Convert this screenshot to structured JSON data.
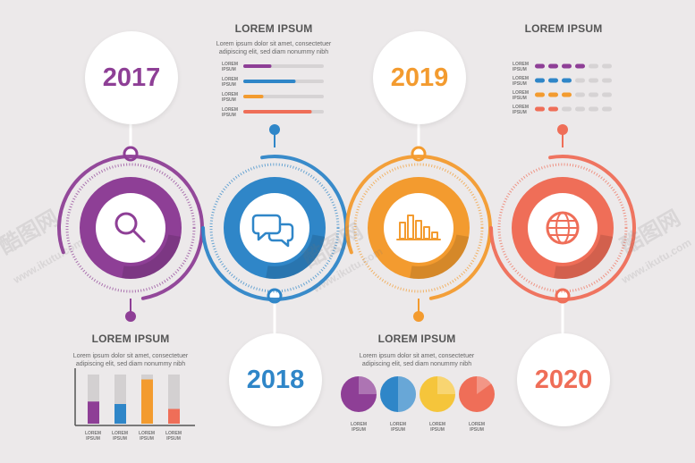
{
  "timeline": [
    {
      "year": "2017",
      "color": "#8e3f96",
      "icon": "search-icon"
    },
    {
      "year": "2018",
      "color": "#2f86c8",
      "icon": "chat-bubbles-icon"
    },
    {
      "year": "2019",
      "color": "#f39b2f",
      "icon": "bar-chart-icon"
    },
    {
      "year": "2020",
      "color": "#ef6e58",
      "icon": "globe-icon"
    }
  ],
  "blocks": {
    "top_left": {
      "title": "LOREM IPSUM",
      "text": [
        "Lorem ipsum dolor sit amet, consectetuer",
        "adipiscing elit, sed diam nonummy nibh"
      ]
    },
    "top_right": {
      "title": "LOREM IPSUM"
    },
    "bottom_left": {
      "title": "LOREM IPSUM",
      "text": [
        "Lorem ipsum dolor sit amet, consectetuer",
        "adipiscing elit, sed diam nonummy nibh"
      ]
    },
    "bottom_right": {
      "title": "LOREM IPSUM",
      "text": [
        "Lorem ipsum dolor sit amet, consectetuer",
        "adipiscing elit, sed diam nonummy nibh"
      ]
    }
  },
  "progress_bars": {
    "label": [
      "LOREM",
      "IPSUM"
    ],
    "items": [
      {
        "color": "#8e3f96",
        "value": 0.35
      },
      {
        "color": "#2f86c8",
        "value": 0.65
      },
      {
        "color": "#f39b2f",
        "value": 0.25
      },
      {
        "color": "#ef6e58",
        "value": 0.85
      }
    ]
  },
  "dot_ratings": {
    "label": [
      "LOREM",
      "IPSUM"
    ],
    "total": 6,
    "items": [
      {
        "color": "#8e3f96",
        "filled": 4
      },
      {
        "color": "#2f86c8",
        "filled": 3
      },
      {
        "color": "#f39b2f",
        "filled": 3
      },
      {
        "color": "#ef6e58",
        "filled": 2
      }
    ]
  },
  "column_chart": {
    "label": [
      "LOREM",
      "IPSUM"
    ],
    "items": [
      {
        "color": "#8e3f96",
        "value": 0.45
      },
      {
        "color": "#2f86c8",
        "value": 0.4
      },
      {
        "color": "#f39b2f",
        "value": 0.9
      },
      {
        "color": "#ef6e58",
        "value": 0.3
      }
    ]
  },
  "pies": {
    "label": [
      "LOREM",
      "IPSUM"
    ],
    "items": [
      {
        "color": "#8e3f96",
        "value": 0.25
      },
      {
        "color": "#2f86c8",
        "value": 0.5
      },
      {
        "color": "#f5c53b",
        "value": 0.25
      },
      {
        "color": "#ef6e58",
        "value": 0.15
      }
    ]
  },
  "watermark": {
    "logo": "酷图网",
    "url": "www.ikutu.com"
  }
}
